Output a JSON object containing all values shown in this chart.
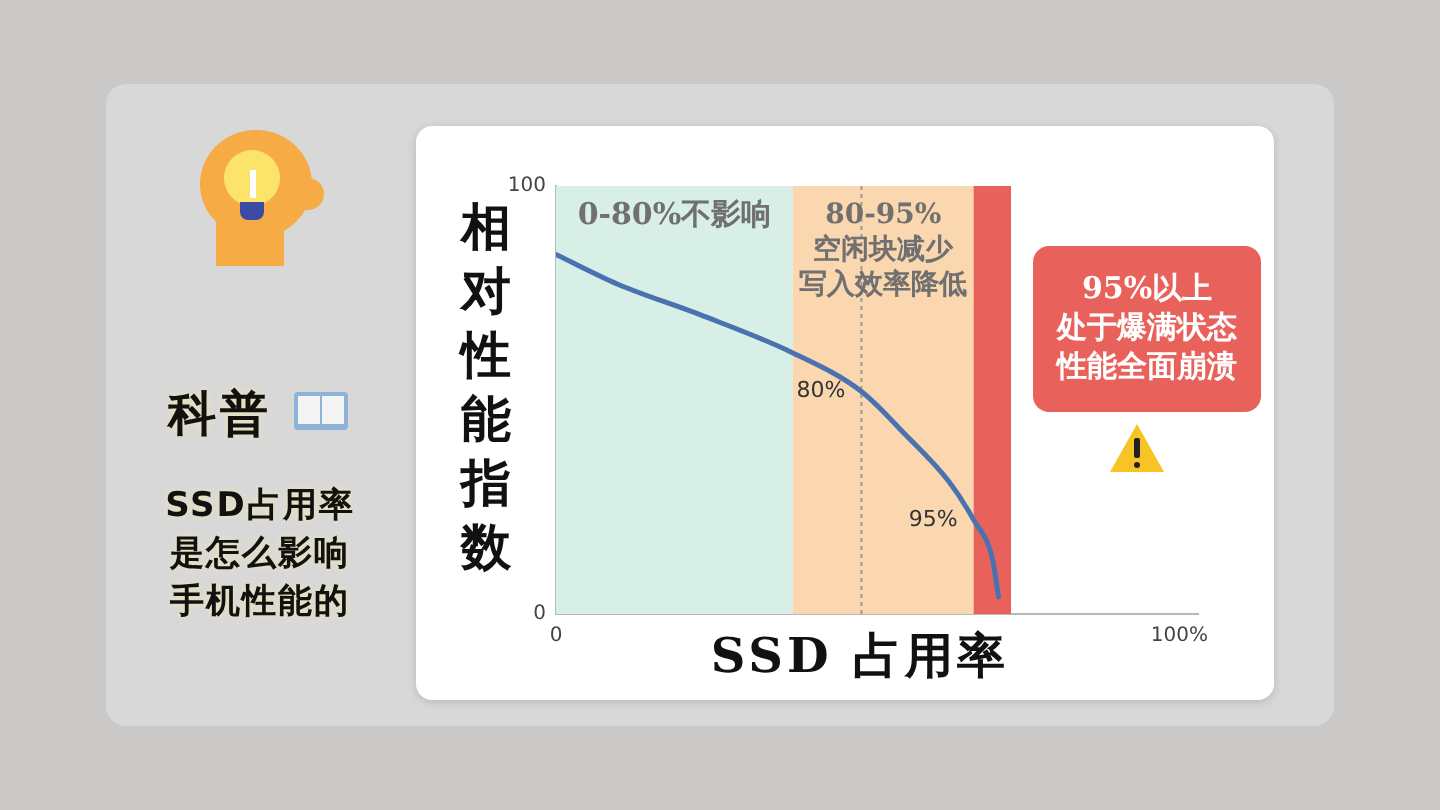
{
  "chart_data": {
    "type": "line",
    "title": "科普",
    "subtitle": "SSD占用率是怎么影响手机性能的",
    "xlabel": "SSD 占用率",
    "ylabel": "相对性能指数",
    "x": [
      0,
      10,
      23,
      38,
      49,
      56,
      63,
      67,
      70,
      71
    ],
    "series": [
      {
        "color": "#4a72b0",
        "values": [
          84,
          77,
          70,
          61,
          52,
          42,
          31,
          22,
          13,
          4
        ]
      }
    ],
    "xlim": [
      0,
      103
    ],
    "xticks": [
      0,
      {
        "value": 100,
        "label": "100%"
      }
    ],
    "ylim": [
      0,
      100
    ],
    "yticks": [
      0,
      100
    ],
    "bands": [
      {
        "axis": "x",
        "from": 0,
        "to": 38,
        "label": "0-80%不影响",
        "color": "#d7efe6"
      },
      {
        "axis": "x",
        "from": 38,
        "to": 67,
        "label": "80-95%\n空闲块减少写入效率降低",
        "color": "#fbd7b0"
      },
      {
        "axis": "x",
        "from": 67,
        "to": 73,
        "label": "95%以上处于爆满状态性能全面崩溃",
        "color": "#e8625b"
      }
    ],
    "ref_lines": [
      {
        "axis": "x",
        "value": 49,
        "color": "#9a9a9a",
        "line_style": "dotted"
      }
    ],
    "annotations": [
      {
        "text": "80%",
        "x": 49,
        "y": 52
      },
      {
        "text": "95%",
        "x": 67,
        "y": 22
      }
    ]
  }
}
